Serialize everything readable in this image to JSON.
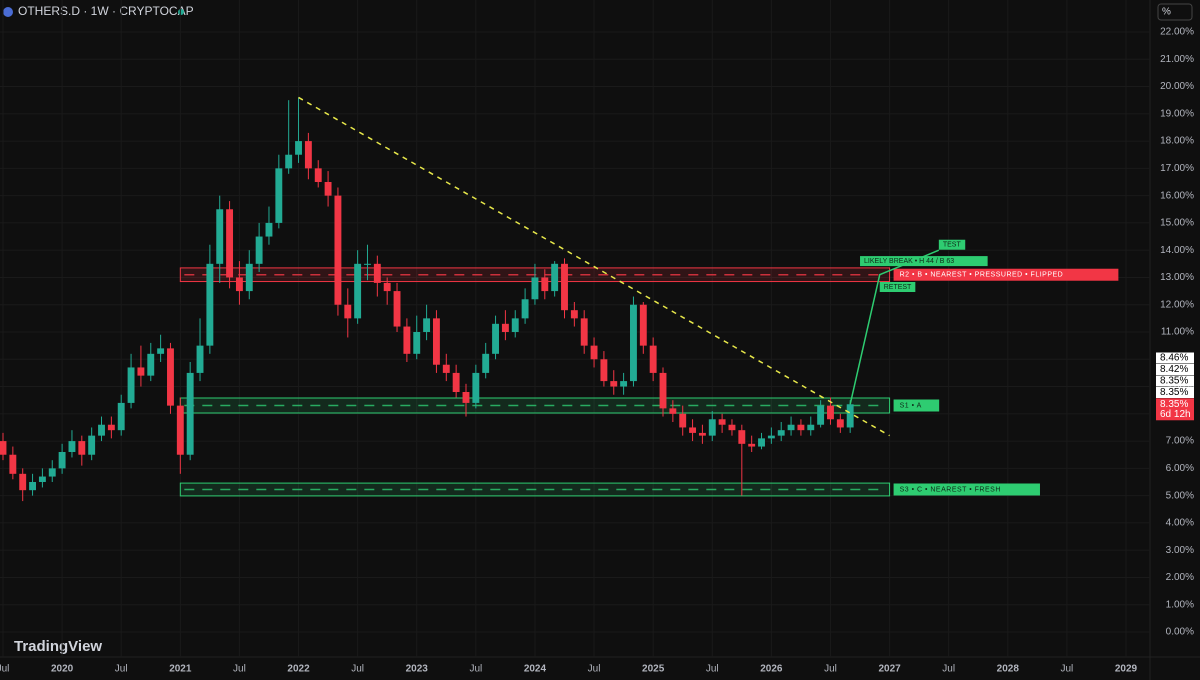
{
  "chart_data": {
    "type": "candlestick",
    "title": "OTHERS.D · 1W · CRYPTOCAP",
    "brand": "TradingView",
    "scale_button": "%",
    "x": [
      "2019-07",
      "2019-08",
      "2019-09",
      "2019-10",
      "2019-11",
      "2019-12",
      "2020-01",
      "2020-02",
      "2020-03",
      "2020-04",
      "2020-05",
      "2020-06",
      "2020-07",
      "2020-08",
      "2020-09",
      "2020-10",
      "2020-11",
      "2020-12",
      "2021-01",
      "2021-02",
      "2021-03",
      "2021-04",
      "2021-05",
      "2021-06",
      "2021-07",
      "2021-08",
      "2021-09",
      "2021-10",
      "2021-11",
      "2021-12",
      "2022-01",
      "2022-02",
      "2022-03",
      "2022-04",
      "2022-05",
      "2022-06",
      "2022-07",
      "2022-08",
      "2022-09",
      "2022-10",
      "2022-11",
      "2022-12",
      "2023-01",
      "2023-02",
      "2023-03",
      "2023-04",
      "2023-05",
      "2023-06",
      "2023-07",
      "2023-08",
      "2023-09",
      "2023-10",
      "2023-11",
      "2023-12",
      "2024-01",
      "2024-02",
      "2024-03",
      "2024-04",
      "2024-05",
      "2024-06",
      "2024-07",
      "2024-08",
      "2024-09",
      "2024-10",
      "2024-11",
      "2024-12",
      "2025-01",
      "2025-02",
      "2025-03",
      "2025-04",
      "2025-05",
      "2025-06",
      "2025-07",
      "2025-08",
      "2025-09",
      "2025-10",
      "2025-11",
      "2025-12",
      "2026-01",
      "2026-02",
      "2026-03",
      "2026-04",
      "2026-05",
      "2026-06",
      "2026-07",
      "2026-08",
      "2026-09"
    ],
    "open": [
      7.0,
      6.5,
      5.8,
      5.2,
      5.5,
      5.7,
      6.0,
      6.6,
      7.0,
      6.5,
      7.2,
      7.6,
      7.4,
      8.4,
      9.7,
      9.4,
      10.2,
      10.4,
      8.3,
      6.5,
      9.5,
      10.5,
      13.5,
      15.5,
      13.0,
      12.5,
      13.5,
      14.5,
      15.0,
      17.0,
      17.5,
      18.0,
      17.0,
      16.5,
      16.0,
      12.0,
      11.5,
      13.5,
      13.5,
      12.8,
      12.5,
      11.2,
      10.2,
      11.0,
      11.5,
      9.8,
      9.5,
      8.8,
      8.4,
      9.5,
      10.2,
      11.3,
      11.0,
      11.5,
      12.2,
      13.0,
      12.5,
      13.5,
      11.8,
      11.5,
      10.5,
      10.0,
      9.2,
      9.0,
      9.2,
      12.0,
      10.5,
      9.5,
      8.2,
      8.0,
      7.5,
      7.3,
      7.2,
      7.8,
      7.6,
      7.4,
      6.9,
      6.8,
      7.1,
      7.2,
      7.4,
      7.6,
      7.4,
      7.6,
      8.3,
      7.8,
      7.5
    ],
    "high": [
      7.3,
      6.8,
      6.0,
      5.8,
      6.0,
      6.3,
      6.9,
      7.4,
      7.2,
      7.5,
      7.9,
      7.9,
      8.7,
      10.2,
      10.5,
      10.6,
      10.9,
      10.6,
      8.6,
      9.9,
      11.5,
      14.2,
      16.0,
      15.8,
      13.6,
      14.0,
      15.0,
      15.6,
      17.5,
      19.5,
      19.6,
      18.3,
      17.3,
      16.9,
      16.3,
      12.6,
      14.0,
      14.2,
      13.8,
      13.0,
      12.8,
      11.5,
      11.6,
      12.0,
      11.8,
      10.2,
      9.8,
      9.1,
      9.8,
      10.6,
      11.6,
      11.8,
      11.8,
      12.6,
      13.5,
      13.3,
      13.6,
      13.7,
      12.1,
      11.8,
      10.8,
      10.3,
      9.6,
      9.5,
      12.3,
      12.1,
      10.8,
      9.7,
      8.5,
      8.3,
      7.8,
      7.6,
      8.1,
      8.0,
      7.8,
      7.6,
      7.2,
      7.3,
      7.5,
      7.7,
      7.9,
      7.8,
      7.9,
      8.5,
      8.6,
      8.0,
      8.5
    ],
    "low": [
      6.3,
      5.6,
      4.8,
      5.0,
      5.3,
      5.5,
      5.8,
      6.4,
      6.1,
      6.3,
      7.0,
      7.1,
      7.2,
      8.2,
      9.0,
      9.2,
      9.9,
      8.0,
      5.8,
      6.3,
      9.2,
      10.2,
      12.8,
      12.6,
      12.0,
      12.2,
      13.2,
      14.2,
      14.8,
      16.8,
      17.2,
      16.6,
      16.3,
      15.6,
      11.6,
      10.8,
      11.3,
      12.9,
      12.3,
      12.0,
      11.0,
      9.9,
      10.0,
      10.7,
      9.5,
      9.2,
      8.6,
      7.9,
      8.2,
      9.3,
      10.0,
      10.7,
      10.8,
      11.3,
      12.0,
      12.2,
      12.3,
      11.5,
      11.2,
      10.2,
      9.7,
      9.0,
      8.7,
      8.7,
      9.0,
      10.2,
      9.2,
      7.9,
      7.7,
      7.2,
      7.0,
      6.9,
      7.0,
      7.3,
      7.2,
      5.0,
      6.6,
      6.7,
      6.9,
      7.0,
      7.2,
      7.2,
      7.2,
      7.5,
      7.6,
      7.3,
      7.3
    ],
    "close": [
      6.5,
      5.8,
      5.2,
      5.5,
      5.7,
      6.0,
      6.6,
      7.0,
      6.5,
      7.2,
      7.6,
      7.4,
      8.4,
      9.7,
      9.4,
      10.2,
      10.4,
      8.3,
      6.5,
      9.5,
      10.5,
      13.5,
      15.5,
      13.0,
      12.5,
      13.5,
      14.5,
      15.0,
      17.0,
      17.5,
      18.0,
      17.0,
      16.5,
      16.0,
      12.0,
      11.5,
      13.5,
      13.5,
      12.8,
      12.5,
      11.2,
      10.2,
      11.0,
      11.5,
      9.8,
      9.5,
      8.8,
      8.4,
      9.5,
      10.2,
      11.3,
      11.0,
      11.5,
      12.2,
      13.0,
      12.5,
      13.5,
      11.8,
      11.5,
      10.5,
      10.0,
      9.2,
      9.0,
      9.2,
      12.0,
      10.5,
      9.5,
      8.2,
      8.0,
      7.5,
      7.3,
      7.2,
      7.8,
      7.6,
      7.4,
      6.9,
      6.8,
      7.1,
      7.2,
      7.4,
      7.6,
      7.4,
      7.6,
      8.3,
      7.8,
      7.5,
      8.35
    ],
    "up_color": "#22ab94",
    "down_color": "#f23645",
    "xlim": [
      "2019-07",
      "2029-01"
    ],
    "xticks": [
      {
        "value": "2019-07",
        "label": "Jul"
      },
      {
        "value": "2020-01",
        "label": "2020"
      },
      {
        "value": "2020-07",
        "label": "Jul"
      },
      {
        "value": "2021-01",
        "label": "2021"
      },
      {
        "value": "2021-07",
        "label": "Jul"
      },
      {
        "value": "2022-01",
        "label": "2022"
      },
      {
        "value": "2022-07",
        "label": "Jul"
      },
      {
        "value": "2023-01",
        "label": "2023"
      },
      {
        "value": "2023-07",
        "label": "Jul"
      },
      {
        "value": "2024-01",
        "label": "2024"
      },
      {
        "value": "2024-07",
        "label": "Jul"
      },
      {
        "value": "2025-01",
        "label": "2025"
      },
      {
        "value": "2025-07",
        "label": "Jul"
      },
      {
        "value": "2026-01",
        "label": "2026"
      },
      {
        "value": "2026-07",
        "label": "Jul"
      },
      {
        "value": "2027-01",
        "label": "2027"
      },
      {
        "value": "2027-07",
        "label": "Jul"
      },
      {
        "value": "2028-01",
        "label": "2028"
      },
      {
        "value": "2028-07",
        "label": "Jul"
      },
      {
        "value": "2029-01",
        "label": "2029"
      }
    ],
    "ylim": [
      0,
      22
    ],
    "yticks": [
      {
        "value": 0,
        "label": "0.00%"
      },
      {
        "value": 1,
        "label": "1.00%"
      },
      {
        "value": 2,
        "label": "2.00%"
      },
      {
        "value": 3,
        "label": "3.00%"
      },
      {
        "value": 4,
        "label": "4.00%"
      },
      {
        "value": 5,
        "label": "5.00%"
      },
      {
        "value": 6,
        "label": "6.00%"
      },
      {
        "value": 7,
        "label": "7.00%"
      },
      {
        "value": 8,
        "label": "8.00%"
      },
      {
        "value": 9,
        "label": "9.00%"
      },
      {
        "value": 10,
        "label": "10.00%"
      },
      {
        "value": 11,
        "label": "11.00%"
      },
      {
        "value": 12,
        "label": "12.00%"
      },
      {
        "value": 13,
        "label": "13.00%"
      },
      {
        "value": 14,
        "label": "14.00%"
      },
      {
        "value": 15,
        "label": "15.00%"
      },
      {
        "value": 16,
        "label": "16.00%"
      },
      {
        "value": 17,
        "label": "17.00%"
      },
      {
        "value": 18,
        "label": "18.00%"
      },
      {
        "value": 19,
        "label": "19.00%"
      },
      {
        "value": 20,
        "label": "20.00%"
      },
      {
        "value": 21,
        "label": "21.00%"
      },
      {
        "value": 22,
        "label": "22.00%"
      }
    ],
    "grid": true,
    "zones": [
      {
        "label": "R2 • B • NEAREST • PRESSURED • FLIPPED",
        "low": 12.85,
        "high": 13.35,
        "x_start": "2021-01",
        "x_end": "2027-01",
        "color": "#f23645"
      },
      {
        "label": "S1 • A",
        "low": 8.03,
        "high": 8.58,
        "x_start": "2021-01",
        "x_end": "2027-01",
        "color": "#2ecc71"
      },
      {
        "label": "S3 • C • NEAREST • FRESH",
        "low": 4.99,
        "high": 5.46,
        "x_start": "2021-01",
        "x_end": "2027-01",
        "color": "#2ecc71"
      }
    ],
    "trendline": {
      "x": [
        "2022-01",
        "2027-01"
      ],
      "y": [
        19.6,
        7.2
      ],
      "color": "#e8e84a"
    },
    "projection": {
      "x": [
        "2026-09",
        "2026-12",
        "2027-06"
      ],
      "y": [
        8.35,
        13.1,
        14.0
      ],
      "color": "#2ecc71",
      "labels": [
        {
          "text": "LIKELY BREAK • H 44 / B 63",
          "x": "2026-10",
          "y": 13.6
        },
        {
          "text": "RETEST",
          "x": "2026-12",
          "y": 12.65
        },
        {
          "text": "TEST",
          "x": "2027-06",
          "y": 14.2
        }
      ]
    },
    "price_scale_labels": [
      "8.46%",
      "8.42%",
      "8.35%",
      "8.35%"
    ],
    "last_price": {
      "value": 8.35,
      "label": "8.35%",
      "countdown": "6d 12h"
    }
  }
}
